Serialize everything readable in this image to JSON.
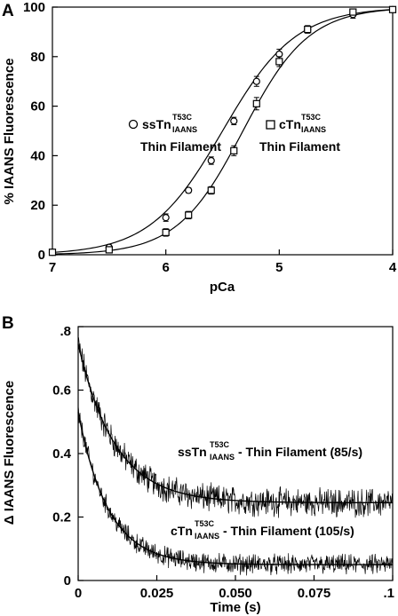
{
  "chart_data": [
    {
      "panel": "A",
      "type": "scatter",
      "xlabel": "pCa",
      "ylabel": "% IAANS Fluorescence",
      "xlim": [
        7,
        4
      ],
      "ylim": [
        0,
        100
      ],
      "x_ticks": [
        "7",
        "6",
        "5",
        "4"
      ],
      "x_tick_values": [
        7,
        6,
        5,
        4
      ],
      "y_ticks": [
        "0",
        "20",
        "40",
        "60",
        "80",
        "100"
      ],
      "y_tick_values": [
        0,
        20,
        40,
        60,
        80,
        100
      ],
      "grid": false,
      "series": [
        {
          "marker": "circle",
          "x": [
            7.0,
            6.5,
            6.0,
            5.8,
            5.6,
            5.4,
            5.2,
            5.0,
            4.75,
            4.35,
            4.0
          ],
          "y": [
            1,
            3,
            15,
            26,
            38,
            54,
            70,
            81,
            91,
            97,
            99
          ],
          "error": [
            1,
            1,
            1.5,
            1,
            1.5,
            1.5,
            2,
            2,
            1.5,
            1.5,
            1
          ],
          "fit": {
            "pCa50": 5.5,
            "hill": 1.35
          }
        },
        {
          "marker": "square",
          "x": [
            7.0,
            6.5,
            6.0,
            5.8,
            5.6,
            5.4,
            5.2,
            5.0,
            4.75,
            4.35,
            4.0
          ],
          "y": [
            1,
            2,
            9,
            16,
            26,
            42,
            61,
            78,
            91,
            98,
            99
          ],
          "error": [
            1,
            1,
            1.5,
            1.5,
            1.5,
            2,
            2.5,
            2,
            1.5,
            1,
            1
          ],
          "fit": {
            "pCa50": 5.32,
            "hill": 1.5
          }
        }
      ],
      "annotations": [
        {
          "prefix": "ssTn",
          "sup": "T53C",
          "sub": "IAANS",
          "line2": "Thin Filament"
        },
        {
          "prefix": "cTn",
          "sup": "T53C",
          "sub": "IAANS",
          "line2": "Thin Filament"
        }
      ]
    },
    {
      "panel": "B",
      "type": "line",
      "xlabel": "Time (s)",
      "ylabel": "Δ IAANS Fluorescence",
      "xlim": [
        0,
        0.1
      ],
      "ylim": [
        0,
        0.8
      ],
      "x_ticks": [
        "0",
        "0.025",
        "0.050",
        "0.075",
        ".1"
      ],
      "x_tick_values": [
        0,
        0.025,
        0.05,
        0.075,
        0.1
      ],
      "y_ticks": [
        "0",
        "0.2",
        "0.4",
        "0.6",
        ".8"
      ],
      "y_tick_values": [
        0,
        0.2,
        0.4,
        0.6,
        0.8
      ],
      "grid": false,
      "series": [
        {
          "label": "ssTn",
          "sup": "T53C",
          "sub": "IAANS",
          "suffix": "- Thin Filament (85/s)",
          "amplitude": 0.5,
          "offset": 0.245,
          "rate": 85,
          "noise": 0.035
        },
        {
          "label": "cTn",
          "sup": "T53C",
          "sub": "IAANS",
          "suffix": "- Thin Filament (105/s)",
          "amplitude": 0.48,
          "offset": 0.05,
          "rate": 105,
          "noise": 0.025
        }
      ]
    }
  ]
}
